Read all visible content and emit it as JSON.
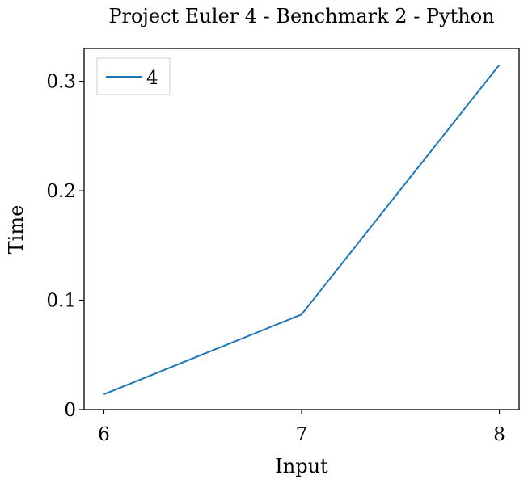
{
  "chart_data": {
    "type": "line",
    "title": "Project Euler 4 - Benchmark 2 - Python",
    "xlabel": "Input",
    "ylabel": "Time",
    "x": [
      6,
      7,
      8
    ],
    "series": [
      {
        "name": "4",
        "color": "#1f77b4",
        "values": [
          0.014,
          0.087,
          0.315
        ]
      }
    ],
    "xticks": [
      6,
      7,
      8
    ],
    "xtick_labels": [
      "6",
      "7",
      "8"
    ],
    "yticks": [
      0,
      0.1,
      0.2,
      0.3
    ],
    "ytick_labels": [
      "0",
      "0.1",
      "0.2",
      "0.3"
    ],
    "xlim": [
      5.9,
      8.1
    ],
    "ylim": [
      0,
      0.33
    ],
    "grid": false,
    "legend_position": "top-left"
  }
}
